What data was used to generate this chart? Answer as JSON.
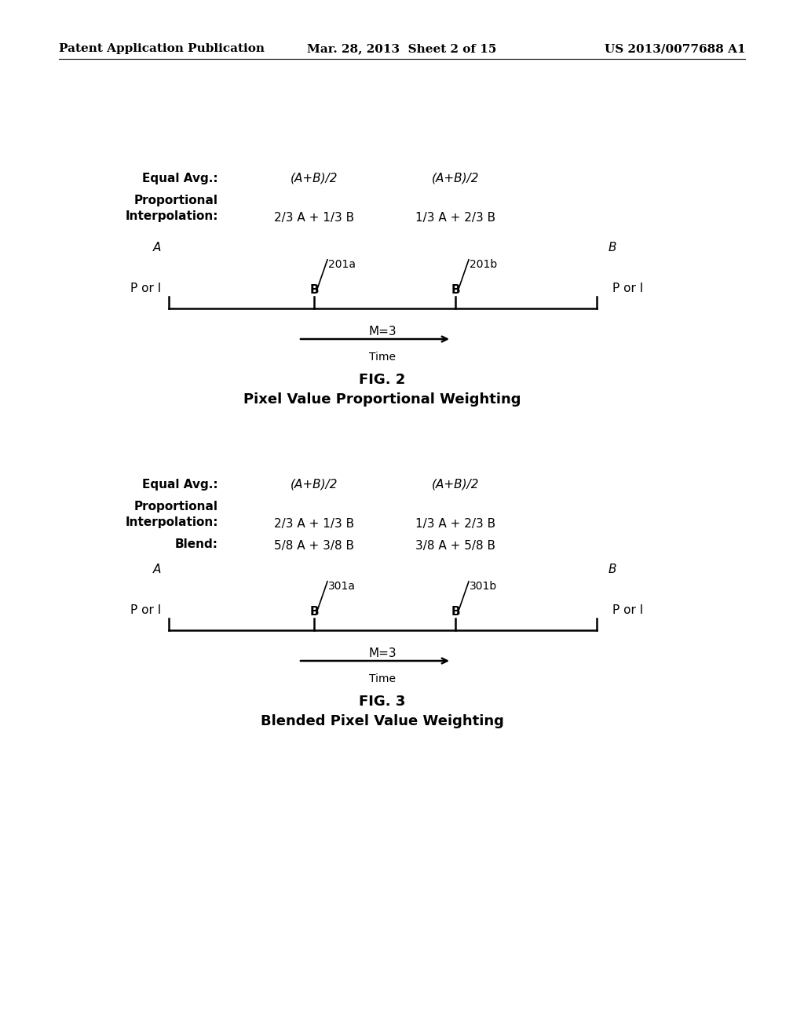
{
  "bg_color": "#ffffff",
  "header_left": "Patent Application Publication",
  "header_mid": "Mar. 28, 2013  Sheet 2 of 15",
  "header_right": "US 2013/0077688 A1",
  "fig2": {
    "equal_avg_label": "Equal Avg.:",
    "equal_avg_val1": "(A+B)/2",
    "equal_avg_val2": "(A+B)/2",
    "prop_interp_label1": "Proportional",
    "prop_interp_label2": "Interpolation:",
    "prop_interp_val1": "2/3 A + 1/3 B",
    "prop_interp_val2": "1/3 A + 2/3 B",
    "label_A": "A",
    "label_B": "B",
    "label_left": "P or I",
    "label_right": "P or I",
    "b_left_label": "B",
    "b_right_label": "B",
    "ref_left": "201a",
    "ref_right": "201b",
    "m_label": "M=3",
    "time_label": "Time",
    "fig_num": "FIG. 2",
    "fig_title": "Pixel Value Proportional Weighting"
  },
  "fig3": {
    "equal_avg_label": "Equal Avg.:",
    "equal_avg_val1": "(A+B)/2",
    "equal_avg_val2": "(A+B)/2",
    "prop_interp_label1": "Proportional",
    "prop_interp_label2": "Interpolation:",
    "prop_interp_val1": "2/3 A + 1/3 B",
    "prop_interp_val2": "1/3 A + 2/3 B",
    "blend_label": "Blend:",
    "blend_val1": "5/8 A + 3/8 B",
    "blend_val2": "3/8 A + 5/8 B",
    "label_A": "A",
    "label_B": "B",
    "label_left": "P or I",
    "label_right": "P or I",
    "b_left_label": "B",
    "b_right_label": "B",
    "ref_left": "301a",
    "ref_right": "301b",
    "m_label": "M=3",
    "time_label": "Time",
    "fig_num": "FIG. 3",
    "fig_title": "Blended Pixel Value Weighting"
  }
}
